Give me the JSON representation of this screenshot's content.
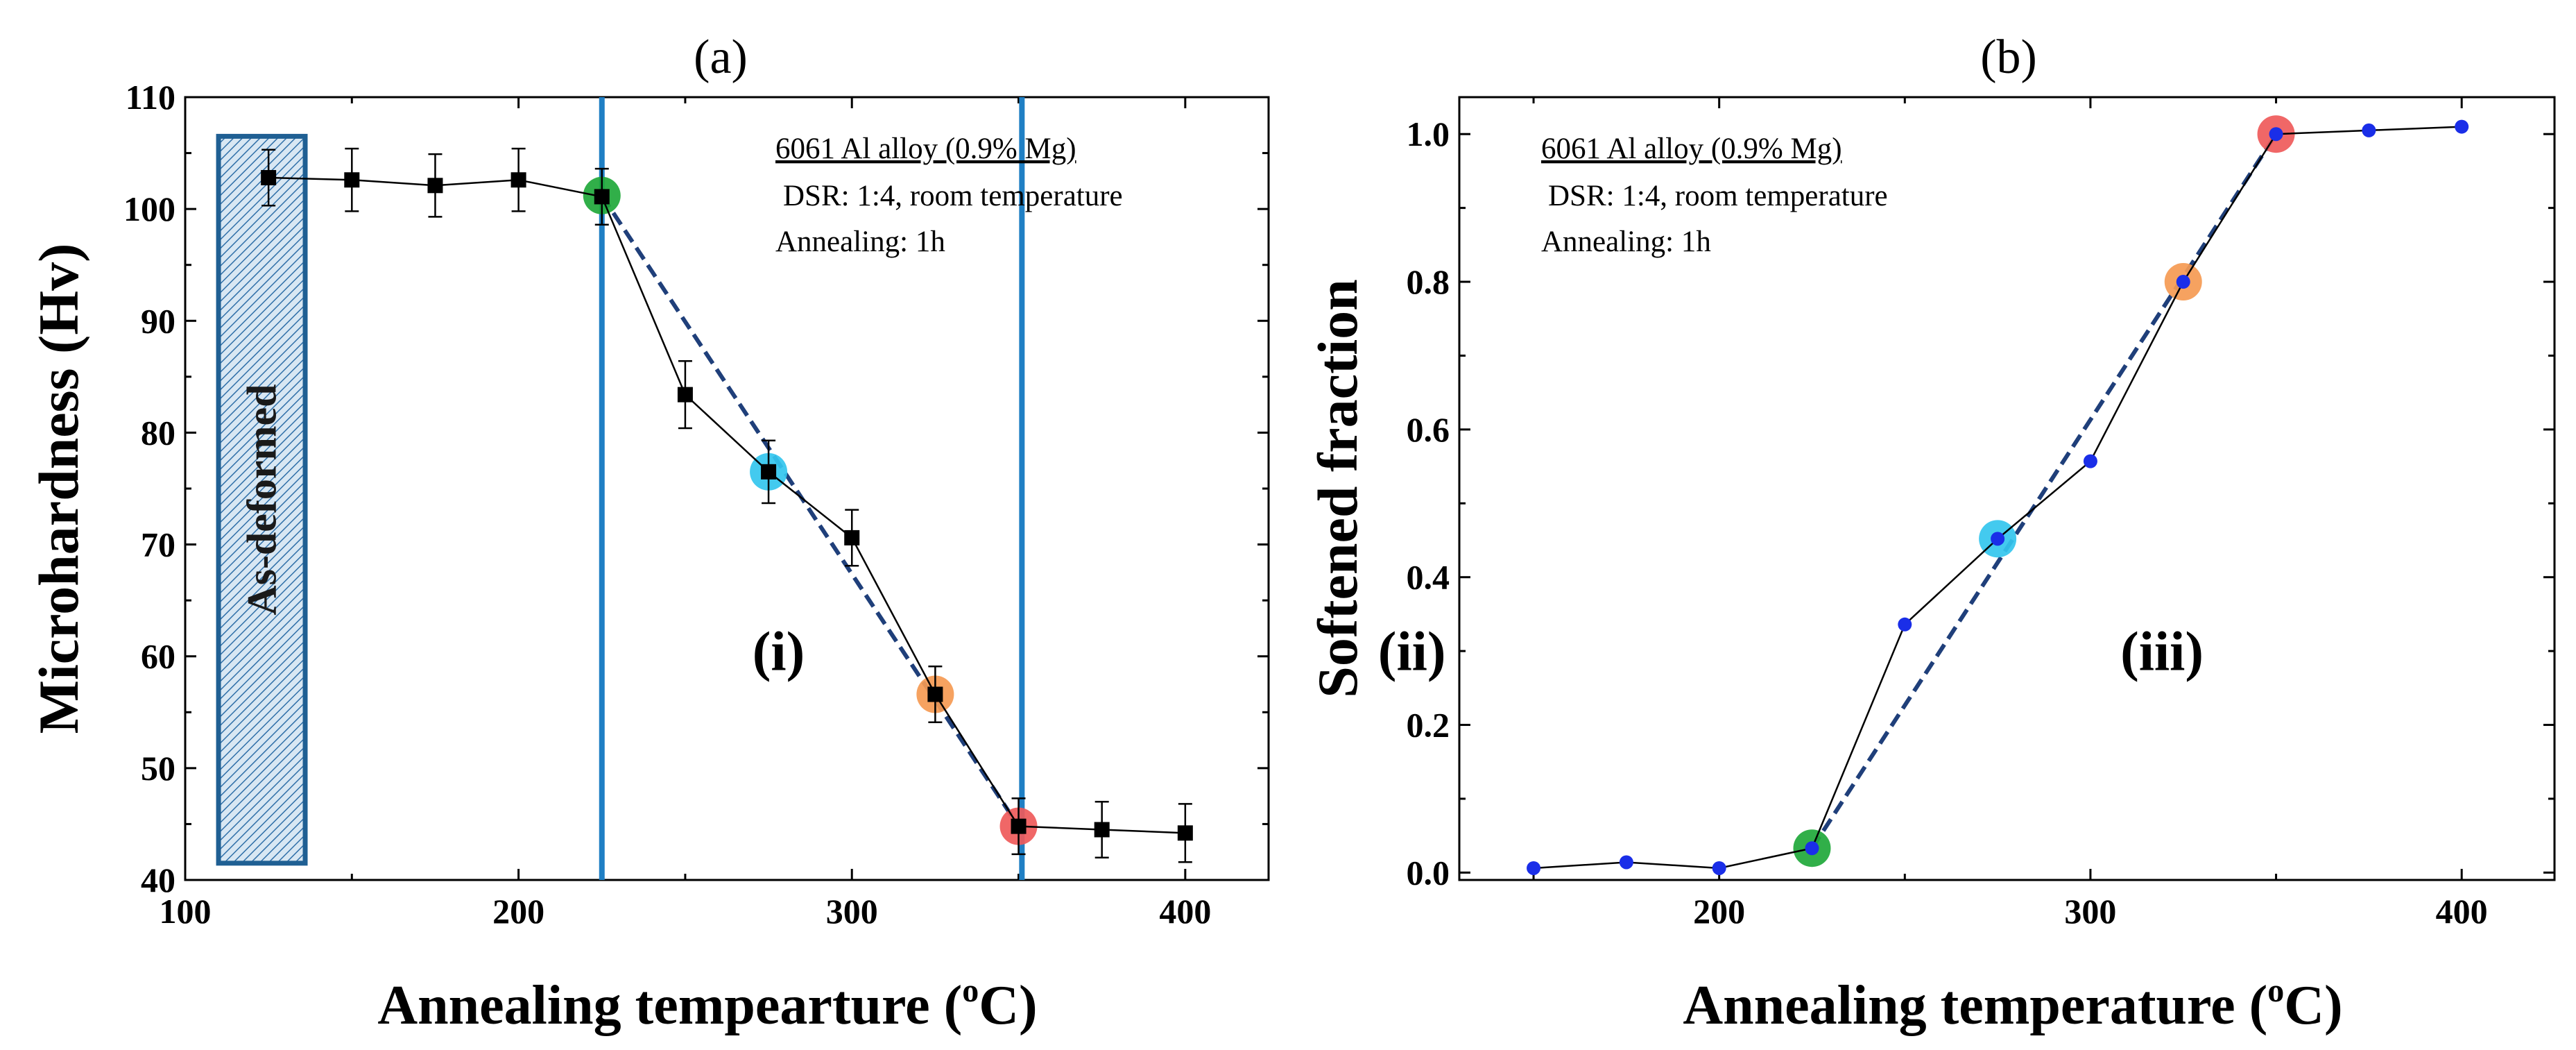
{
  "chart_data": [
    {
      "type": "line",
      "panel_label": "(a)",
      "xlabel": "Annealing tempearture (",
      "xlabel_sup": "o",
      "xlabel_end": "C)",
      "ylabel": "Microhardness (Hv)",
      "xlim": [
        100,
        425
      ],
      "ylim": [
        40,
        110
      ],
      "xticks": [
        "100",
        "200",
        "300",
        "400"
      ],
      "xtick_values": [
        100,
        200,
        300,
        400
      ],
      "yticks": [
        "40",
        "50",
        "60",
        "70",
        "80",
        "90",
        "100",
        "110"
      ],
      "ytick_values": [
        40,
        50,
        60,
        70,
        80,
        90,
        100,
        110
      ],
      "series": [
        {
          "name": "Microhardness",
          "x": [
            125,
            150,
            175,
            200,
            225,
            250,
            275,
            300,
            325,
            350,
            375,
            400
          ],
          "y": [
            102.8,
            102.6,
            102.1,
            102.6,
            101.1,
            83.4,
            76.5,
            70.6,
            56.6,
            44.8,
            44.5,
            44.2
          ],
          "err": [
            2.5,
            2.8,
            2.8,
            2.8,
            2.5,
            3.0,
            2.8,
            2.5,
            2.5,
            2.5,
            2.5,
            2.6
          ]
        }
      ],
      "fit_line": {
        "x": [
          225,
          350
        ],
        "y": [
          101.2,
          44.8
        ]
      },
      "highlights": [
        {
          "x": 225,
          "y": 101.2,
          "color": "#1fa83a"
        },
        {
          "x": 275,
          "y": 76.5,
          "color": "#33c5ee"
        },
        {
          "x": 325,
          "y": 56.6,
          "color": "#f59a52"
        },
        {
          "x": 350,
          "y": 44.8,
          "color": "#ef5a5a"
        }
      ],
      "vlines": [
        225,
        351
      ],
      "region_box": {
        "x": [
          110,
          136
        ],
        "y": [
          41.5,
          106.5
        ],
        "label": "As-deformed"
      },
      "region_labels": [
        {
          "text": "(i)",
          "x": 278,
          "y": 60
        },
        {
          "text": "(ii)",
          "x": 468,
          "y": 60
        },
        {
          "text": "(iii)",
          "x": 693,
          "y": 60
        }
      ],
      "annotations": [
        "6061 Al alloy (0.9% Mg)",
        "DSR: 1:4, room temperature",
        "Annealing: 1h"
      ]
    },
    {
      "type": "line",
      "panel_label": "(b)",
      "xlabel": "Annealing temperature (",
      "xlabel_sup": "o",
      "xlabel_end": "C)",
      "ylabel": "Softened fraction",
      "xlim": [
        130,
        425
      ],
      "ylim": [
        -0.01,
        1.05
      ],
      "xticks": [
        "200",
        "300",
        "400"
      ],
      "xtick_values": [
        200,
        300,
        400
      ],
      "yticks": [
        "0.0",
        "0.2",
        "0.4",
        "0.6",
        "0.8",
        "1.0"
      ],
      "ytick_values": [
        0.0,
        0.2,
        0.4,
        0.6,
        0.8,
        1.0
      ],
      "series": [
        {
          "name": "Softened fraction",
          "x": [
            150,
            175,
            200,
            225,
            250,
            275,
            300,
            325,
            350,
            375,
            400
          ],
          "y": [
            0.006,
            0.014,
            0.006,
            0.033,
            0.336,
            0.452,
            0.557,
            0.8,
            1.0,
            1.005,
            1.01
          ]
        }
      ],
      "fit_line": {
        "x": [
          225,
          350
        ],
        "y": [
          0.033,
          1.0
        ]
      },
      "highlights": [
        {
          "x": 225,
          "y": 0.033,
          "color": "#1fa83a"
        },
        {
          "x": 275,
          "y": 0.452,
          "color": "#33c5ee"
        },
        {
          "x": 325,
          "y": 0.8,
          "color": "#f59a52"
        },
        {
          "x": 350,
          "y": 1.0,
          "color": "#ef5a5a"
        }
      ],
      "annotations": [
        "6061 Al alloy (0.9% Mg)",
        "DSR: 1:4, room temperature",
        "Annealing: 1h"
      ]
    }
  ]
}
